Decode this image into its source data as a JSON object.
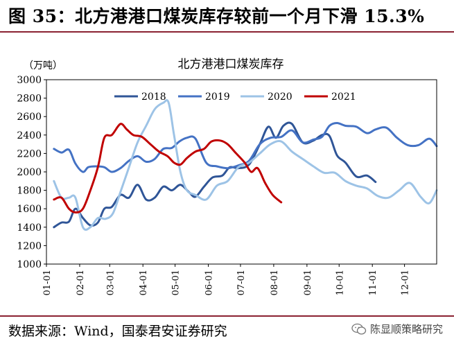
{
  "figure": {
    "title": "图 35：北方港港口煤炭库存较前一个月下滑 15.3%",
    "source": "数据来源：Wind，国泰君安证券研究",
    "watermark": "陈显顺策略研究"
  },
  "chart_data": {
    "type": "line",
    "title": "北方港港口煤炭库存",
    "ylabel": "（万吨）",
    "xlabel": "",
    "ylim": [
      1000,
      3000
    ],
    "yticks": [
      1000,
      1200,
      1400,
      1600,
      1800,
      2000,
      2200,
      2400,
      2600,
      2800,
      3000
    ],
    "xlim": [
      1,
      365
    ],
    "xtick_positions": [
      1,
      32,
      60,
      91,
      121,
      152,
      182,
      213,
      244,
      274,
      305,
      335
    ],
    "xtick_labels": [
      "01-01",
      "02-01",
      "03-01",
      "04-01",
      "05-01",
      "06-01",
      "07-01",
      "08-01",
      "09-01",
      "10-01",
      "11-01",
      "12-01"
    ],
    "legend_position": "top",
    "grid": false,
    "series": [
      {
        "name": "2018",
        "color": "#2f5597",
        "x": [
          8,
          15,
          22,
          28,
          35,
          42,
          49,
          55,
          62,
          70,
          78,
          86,
          94,
          102,
          110,
          118,
          126,
          134,
          140,
          148,
          156,
          165,
          172,
          180,
          190,
          200,
          208,
          215,
          222,
          230,
          240,
          250,
          258,
          265,
          272,
          280,
          290,
          300,
          308
        ],
        "values": [
          1400,
          1450,
          1460,
          1600,
          1500,
          1420,
          1450,
          1600,
          1620,
          1750,
          1720,
          1860,
          1700,
          1720,
          1840,
          1800,
          1860,
          1780,
          1730,
          1840,
          1940,
          1960,
          2050,
          2040,
          2080,
          2300,
          2490,
          2370,
          2500,
          2520,
          2320,
          2340,
          2400,
          2390,
          2180,
          2100,
          1950,
          1960,
          1890
        ]
      },
      {
        "name": "2019",
        "color": "#4472c4",
        "x": [
          8,
          15,
          22,
          28,
          35,
          40,
          47,
          55,
          62,
          70,
          78,
          86,
          94,
          102,
          110,
          118,
          125,
          132,
          140,
          150,
          160,
          170,
          180,
          190,
          200,
          210,
          220,
          230,
          240,
          250,
          258,
          265,
          272,
          280,
          290,
          300,
          308,
          318,
          328,
          338,
          348,
          358,
          365
        ],
        "values": [
          2250,
          2210,
          2240,
          2090,
          2000,
          2050,
          2060,
          2050,
          2000,
          2040,
          2120,
          2170,
          2110,
          2140,
          2250,
          2260,
          2330,
          2370,
          2360,
          2100,
          2060,
          2040,
          2070,
          2120,
          2300,
          2370,
          2380,
          2450,
          2320,
          2350,
          2380,
          2500,
          2530,
          2500,
          2490,
          2420,
          2460,
          2480,
          2370,
          2290,
          2290,
          2360,
          2280
        ]
      },
      {
        "name": "2020",
        "color": "#9dc3e6",
        "x": [
          8,
          15,
          22,
          28,
          35,
          42,
          49,
          56,
          63,
          70,
          78,
          86,
          94,
          102,
          110,
          115,
          120,
          126,
          132,
          140,
          150,
          160,
          170,
          180,
          190,
          200,
          210,
          220,
          230,
          240,
          250,
          260,
          270,
          280,
          290,
          300,
          310,
          320,
          330,
          340,
          350,
          358,
          365
        ],
        "values": [
          1900,
          1720,
          1720,
          1720,
          1400,
          1400,
          1500,
          1490,
          1550,
          1780,
          2050,
          2320,
          2500,
          2680,
          2750,
          2750,
          2400,
          2000,
          1800,
          1750,
          1700,
          1850,
          1900,
          2050,
          2100,
          2200,
          2300,
          2330,
          2220,
          2140,
          2060,
          1990,
          1990,
          1900,
          1850,
          1820,
          1740,
          1720,
          1800,
          1880,
          1730,
          1660,
          1800
        ]
      },
      {
        "name": "2021",
        "color": "#c00000",
        "x": [
          8,
          15,
          22,
          28,
          35,
          42,
          49,
          55,
          62,
          70,
          76,
          82,
          90,
          98,
          106,
          114,
          120,
          126,
          132,
          140,
          148,
          155,
          163,
          170,
          178,
          186,
          192,
          198,
          205,
          212,
          220
        ],
        "values": [
          1700,
          1720,
          1600,
          1560,
          1600,
          1800,
          2050,
          2370,
          2400,
          2520,
          2460,
          2400,
          2380,
          2300,
          2220,
          2170,
          2100,
          2080,
          2150,
          2220,
          2250,
          2330,
          2340,
          2300,
          2200,
          2100,
          2000,
          2040,
          1880,
          1750,
          1670
        ]
      }
    ]
  }
}
